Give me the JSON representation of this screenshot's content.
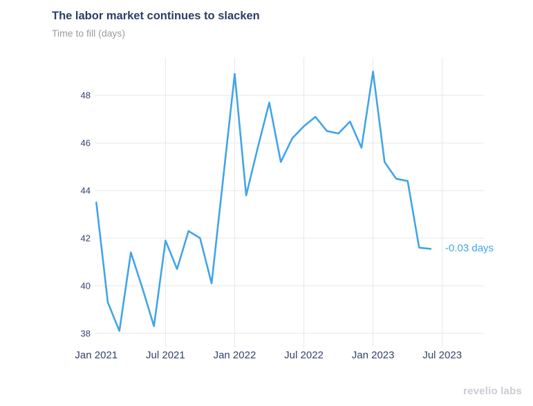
{
  "header": {
    "title": "The labor market continues to slacken",
    "subtitle": "Time to fill (days)"
  },
  "chart_data": {
    "type": "line",
    "title": "The labor market continues to slacken",
    "ylabel": "Time to fill (days)",
    "xlabel": "",
    "x": [
      "Jan 2021",
      "Feb 2021",
      "Mar 2021",
      "Apr 2021",
      "May 2021",
      "Jun 2021",
      "Jul 2021",
      "Aug 2021",
      "Sep 2021",
      "Oct 2021",
      "Nov 2021",
      "Dec 2021",
      "Jan 2022",
      "Feb 2022",
      "Mar 2022",
      "Apr 2022",
      "May 2022",
      "Jun 2022",
      "Jul 2022",
      "Aug 2022",
      "Sep 2022",
      "Oct 2022",
      "Nov 2022",
      "Dec 2022",
      "Jan 2023",
      "Feb 2023",
      "Mar 2023",
      "Apr 2023",
      "May 2023",
      "Jun 2023"
    ],
    "values": [
      43.5,
      39.3,
      38.1,
      41.4,
      39.9,
      38.3,
      41.9,
      40.7,
      42.3,
      42.0,
      40.1,
      44.5,
      48.9,
      43.8,
      45.8,
      47.7,
      45.2,
      46.2,
      46.7,
      47.1,
      46.5,
      46.4,
      46.9,
      45.8,
      49.0,
      45.2,
      44.5,
      44.4,
      41.6,
      41.55
    ],
    "ylim": [
      37.5,
      49.6
    ],
    "y_ticks": [
      38,
      40,
      42,
      44,
      46,
      48
    ],
    "x_ticks": [
      {
        "label": "Jan 2021",
        "month": 0,
        "gridline": false
      },
      {
        "label": "Jul 2021",
        "month": 6,
        "gridline": true
      },
      {
        "label": "Jan 2022",
        "month": 12,
        "gridline": true
      },
      {
        "label": "Jul 2022",
        "month": 18,
        "gridline": true
      },
      {
        "label": "Jan 2023",
        "month": 24,
        "gridline": true
      },
      {
        "label": "Jul 2023",
        "month": 30,
        "gridline": true
      }
    ],
    "grid": "both",
    "legend": "none",
    "annotation": {
      "text": "-0.03 days",
      "attach": "last-point"
    }
  },
  "colors": {
    "title": "#2a3f63",
    "subtitle": "#9a9a9a",
    "axis_labels": "#33426b",
    "gridline": "#e7e7e7",
    "line": "#41a4e8",
    "annotation": "#41a4e8",
    "watermark": "#c9ccd3"
  },
  "footer": {
    "watermark": "revelio labs"
  }
}
